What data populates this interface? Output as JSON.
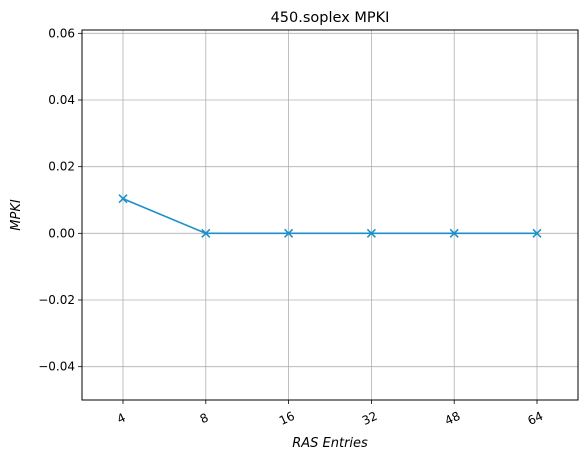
{
  "chart_data": {
    "type": "line",
    "title": "450.soplex MPKI",
    "xlabel": "RAS Entries",
    "ylabel": "MPKI",
    "categories": [
      "4",
      "8",
      "16",
      "32",
      "48",
      "64"
    ],
    "series": [
      {
        "values": [
          0.0104,
          0.0,
          0.0,
          0.0,
          0.0,
          0.0
        ],
        "color": "#1a8fc9",
        "marker": "x"
      }
    ],
    "ylim": [
      -0.05,
      0.061
    ],
    "yticks": [
      -0.04,
      -0.02,
      0.0,
      0.02,
      0.04,
      0.06
    ],
    "ytick_labels": [
      "−0.04",
      "−0.02",
      "0.00",
      "0.02",
      "0.04",
      "0.06"
    ],
    "grid": true,
    "xtick_rotation": -25
  }
}
